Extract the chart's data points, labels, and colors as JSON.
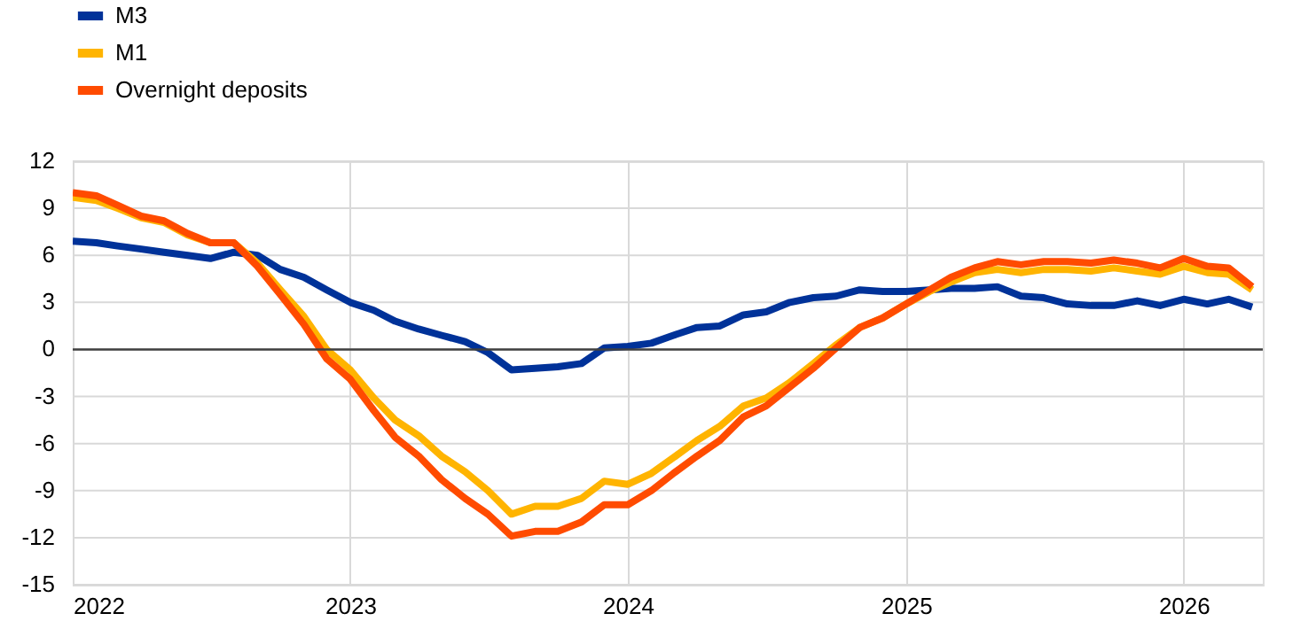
{
  "chart_data": {
    "type": "line",
    "x": [
      "2022-01",
      "2022-02",
      "2022-03",
      "2022-04",
      "2022-05",
      "2022-06",
      "2022-07",
      "2022-08",
      "2022-09",
      "2022-10",
      "2022-11",
      "2022-12",
      "2023-01",
      "2023-02",
      "2023-03",
      "2023-04",
      "2023-05",
      "2023-06",
      "2023-07",
      "2023-08",
      "2023-09",
      "2023-10",
      "2023-11",
      "2023-12",
      "2024-01",
      "2024-02",
      "2024-03",
      "2024-04",
      "2024-05",
      "2024-06",
      "2024-07",
      "2024-08",
      "2024-09",
      "2024-10",
      "2024-11",
      "2024-12",
      "2025-01",
      "2025-02",
      "2025-03",
      "2025-04",
      "2025-05",
      "2025-06",
      "2025-07",
      "2025-08",
      "2025-09",
      "2025-10",
      "2025-11",
      "2025-12",
      "2026-01",
      "2026-02",
      "2026-03",
      "2026-04"
    ],
    "series": [
      {
        "name": "M3",
        "color": "#003299",
        "values": [
          6.9,
          6.8,
          6.6,
          6.4,
          6.2,
          6.0,
          5.8,
          6.2,
          6.0,
          5.1,
          4.6,
          3.8,
          3.0,
          2.5,
          1.8,
          1.3,
          0.9,
          0.5,
          -0.2,
          -1.3,
          -1.2,
          -1.1,
          -0.9,
          0.1,
          0.2,
          0.4,
          0.9,
          1.4,
          1.5,
          2.2,
          2.4,
          3.0,
          3.3,
          3.4,
          3.8,
          3.7,
          3.7,
          3.8,
          3.9,
          3.9,
          4.0,
          3.4,
          3.3,
          2.9,
          2.8,
          2.8,
          3.1,
          2.8,
          3.2,
          2.9,
          3.2,
          2.7
        ]
      },
      {
        "name": "M1",
        "color": "#ffb400",
        "values": [
          9.7,
          9.5,
          9.0,
          8.4,
          8.1,
          7.3,
          6.8,
          6.8,
          5.5,
          3.8,
          2.1,
          0.0,
          -1.3,
          -3.1,
          -4.5,
          -5.5,
          -6.8,
          -7.8,
          -9.0,
          -10.5,
          -10.0,
          -10.0,
          -9.5,
          -8.4,
          -8.6,
          -7.9,
          -6.9,
          -5.8,
          -4.9,
          -3.6,
          -3.1,
          -2.1,
          -0.9,
          0.3,
          1.4,
          2.0,
          2.9,
          3.7,
          4.3,
          4.9,
          5.1,
          4.9,
          5.1,
          5.1,
          5.0,
          5.2,
          5.0,
          4.8,
          5.3,
          4.9,
          4.8,
          3.8
        ]
      },
      {
        "name": "Overnight deposits",
        "color": "#ff4b00",
        "values": [
          10.0,
          9.8,
          9.2,
          8.5,
          8.2,
          7.4,
          6.8,
          6.8,
          5.3,
          3.5,
          1.6,
          -0.6,
          -1.9,
          -3.9,
          -5.6,
          -6.8,
          -8.3,
          -9.5,
          -10.5,
          -11.9,
          -11.6,
          -11.6,
          -11.0,
          -9.9,
          -9.9,
          -9.0,
          -7.9,
          -6.8,
          -5.8,
          -4.3,
          -3.6,
          -2.4,
          -1.2,
          0.1,
          1.4,
          2.0,
          2.9,
          3.8,
          4.6,
          5.2,
          5.6,
          5.4,
          5.6,
          5.6,
          5.5,
          5.7,
          5.5,
          5.2,
          5.8,
          5.3,
          5.2,
          4.0
        ]
      }
    ],
    "xlim": [
      "2022-01",
      "2026-04-15"
    ],
    "xticks": [
      "2022",
      "2023",
      "2024",
      "2025",
      "2026"
    ],
    "ylim": [
      -15,
      12
    ],
    "yticks": [
      -15,
      -12,
      -9,
      -6,
      -3,
      0,
      3,
      6,
      9,
      12
    ],
    "ref_lines": [
      {
        "axis": "y",
        "value": 0,
        "color": "#404040"
      }
    ],
    "grid": true,
    "legend": "top left",
    "marker": "none",
    "line_style": "solid"
  }
}
